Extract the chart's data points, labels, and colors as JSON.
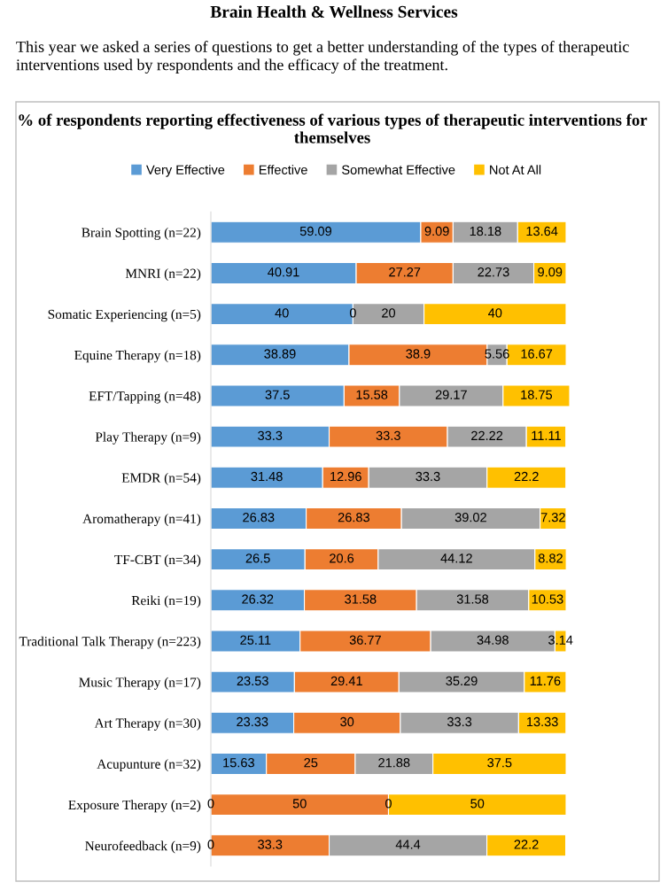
{
  "chart_data": {
    "type": "bar",
    "orientation": "horizontal",
    "stacked": true,
    "legend": "top",
    "grid": false,
    "title": "% of respondents reporting effectiveness of various types of therapeutic interventions for themselves",
    "annotations": [
      "Brain Health & Wellness Services",
      "This year we asked a series of questions to get a better understanding of the types of therapeutic interventions used by respondents and the efficacy of the treatment."
    ],
    "categories": [
      "Brain Spotting (n=22)",
      "MNRI (n=22)",
      "Somatic Experiencing (n=5)",
      "Equine Therapy (n=18)",
      "EFT/Tapping (n=48)",
      "Play Therapy (n=9)",
      "EMDR (n=54)",
      "Aromatherapy (n=41)",
      "TF-CBT (n=34)",
      "Reiki (n=19)",
      "Traditional Talk Therapy (n=223)",
      "Music Therapy (n=17)",
      "Art Therapy (n=30)",
      "Acupunture (n=32)",
      "Exposure Therapy (n=2)",
      "Neurofeedback (n=9)"
    ],
    "series": [
      {
        "name": "Very Effective",
        "color": "#5b9bd5",
        "values": [
          59.09,
          40.91,
          40,
          38.89,
          37.5,
          33.3,
          31.48,
          26.83,
          26.5,
          26.32,
          25.11,
          23.53,
          23.33,
          15.63,
          null,
          null
        ],
        "value_labels": [
          "59.09",
          "40.91",
          "40",
          "38.89",
          "37.5",
          "33.3",
          "31.48",
          "26.83",
          "26.5",
          "26.32",
          "25.11",
          "23.53",
          "23.33",
          "15.63",
          "0",
          "0"
        ]
      },
      {
        "name": "Effective",
        "color": "#ed7d31",
        "values": [
          9.09,
          27.27,
          null,
          38.9,
          15.58,
          33.3,
          12.96,
          26.83,
          20.6,
          31.58,
          36.77,
          29.41,
          30,
          25,
          50,
          33.3
        ],
        "value_labels": [
          "9.09",
          "27.27",
          "0",
          "38.9",
          "15.58",
          "33.3",
          "12.96",
          "26.83",
          "20.6",
          "31.58",
          "36.77",
          "29.41",
          "30",
          "25",
          "50",
          "33.3"
        ]
      },
      {
        "name": "Somewhat Effective",
        "color": "#a5a5a5",
        "values": [
          18.18,
          22.73,
          20,
          5.56,
          29.17,
          22.22,
          33.3,
          39.02,
          44.12,
          31.58,
          34.98,
          35.29,
          33.3,
          21.88,
          null,
          44.4
        ],
        "value_labels": [
          "18.18",
          "22.73",
          "20",
          "5.56",
          "29.17",
          "22.22",
          "33.3",
          "39.02",
          "44.12",
          "31.58",
          "34.98",
          "35.29",
          "33.3",
          "21.88",
          "0",
          "44.4"
        ]
      },
      {
        "name": "Not At All",
        "color": "#ffc000",
        "values": [
          13.64,
          9.09,
          40,
          16.67,
          18.75,
          11.11,
          22.2,
          7.32,
          8.82,
          10.53,
          3.14,
          11.76,
          13.33,
          37.5,
          50,
          22.2
        ],
        "value_labels": [
          "13.64",
          "9.09",
          "40",
          "16.67",
          "18.75",
          "11.11",
          "22.2",
          "7.32",
          "8.82",
          "10.53",
          "3.14",
          "11.76",
          "13.33",
          "37.5",
          "50",
          "22.2"
        ]
      }
    ]
  }
}
